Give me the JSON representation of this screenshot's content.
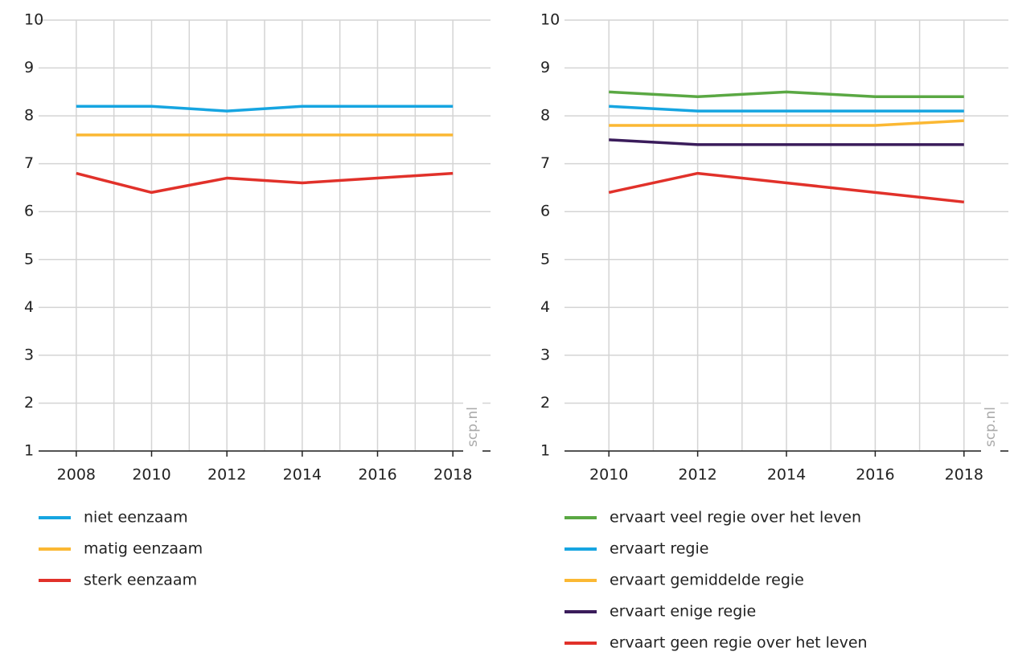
{
  "chart_data": [
    {
      "type": "line",
      "x": [
        2008,
        2010,
        2012,
        2014,
        2016,
        2018
      ],
      "series": [
        {
          "name": "niet eenzaam",
          "color": "#16a5e1",
          "values": [
            8.2,
            8.2,
            8.1,
            8.2,
            8.2,
            8.2
          ]
        },
        {
          "name": "matig eenzaam",
          "color": "#fbb833",
          "values": [
            7.6,
            7.6,
            7.6,
            7.6,
            7.6,
            7.6
          ]
        },
        {
          "name": "sterk eenzaam",
          "color": "#e1312a",
          "values": [
            6.8,
            6.4,
            6.7,
            6.6,
            6.7,
            6.8
          ]
        }
      ],
      "xlim": [
        2007,
        2019
      ],
      "xticks": [
        2008,
        2010,
        2012,
        2014,
        2016,
        2018
      ],
      "xminor": [
        2009,
        2011,
        2013,
        2015,
        2017
      ],
      "ylim": [
        1,
        10
      ],
      "yticks": [
        1,
        2,
        3,
        4,
        5,
        6,
        7,
        8,
        9,
        10
      ],
      "grid": true,
      "annotation": "scp.nl"
    },
    {
      "type": "line",
      "x": [
        2010,
        2012,
        2014,
        2016,
        2018
      ],
      "series": [
        {
          "name": "ervaart veel regie over het leven",
          "color": "#5aa843",
          "values": [
            8.5,
            8.4,
            8.5,
            8.4,
            8.4
          ]
        },
        {
          "name": "ervaart regie",
          "color": "#16a5e1",
          "values": [
            8.2,
            8.1,
            8.1,
            8.1,
            8.1
          ]
        },
        {
          "name": "ervaart gemiddelde regie",
          "color": "#fbb833",
          "values": [
            7.8,
            7.8,
            7.8,
            7.8,
            7.9
          ]
        },
        {
          "name": "ervaart enige regie",
          "color": "#3a1c5b",
          "values": [
            7.5,
            7.4,
            7.4,
            7.4,
            7.4
          ]
        },
        {
          "name": "ervaart geen regie over het leven",
          "color": "#e1312a",
          "values": [
            6.4,
            6.8,
            6.6,
            6.4,
            6.2
          ]
        }
      ],
      "xlim": [
        2009,
        2019
      ],
      "xticks": [
        2010,
        2012,
        2014,
        2016,
        2018
      ],
      "xminor": [
        2011,
        2013,
        2015,
        2017
      ],
      "ylim": [
        1,
        10
      ],
      "yticks": [
        1,
        2,
        3,
        4,
        5,
        6,
        7,
        8,
        9,
        10
      ],
      "grid": true,
      "annotation": "scp.nl"
    }
  ]
}
